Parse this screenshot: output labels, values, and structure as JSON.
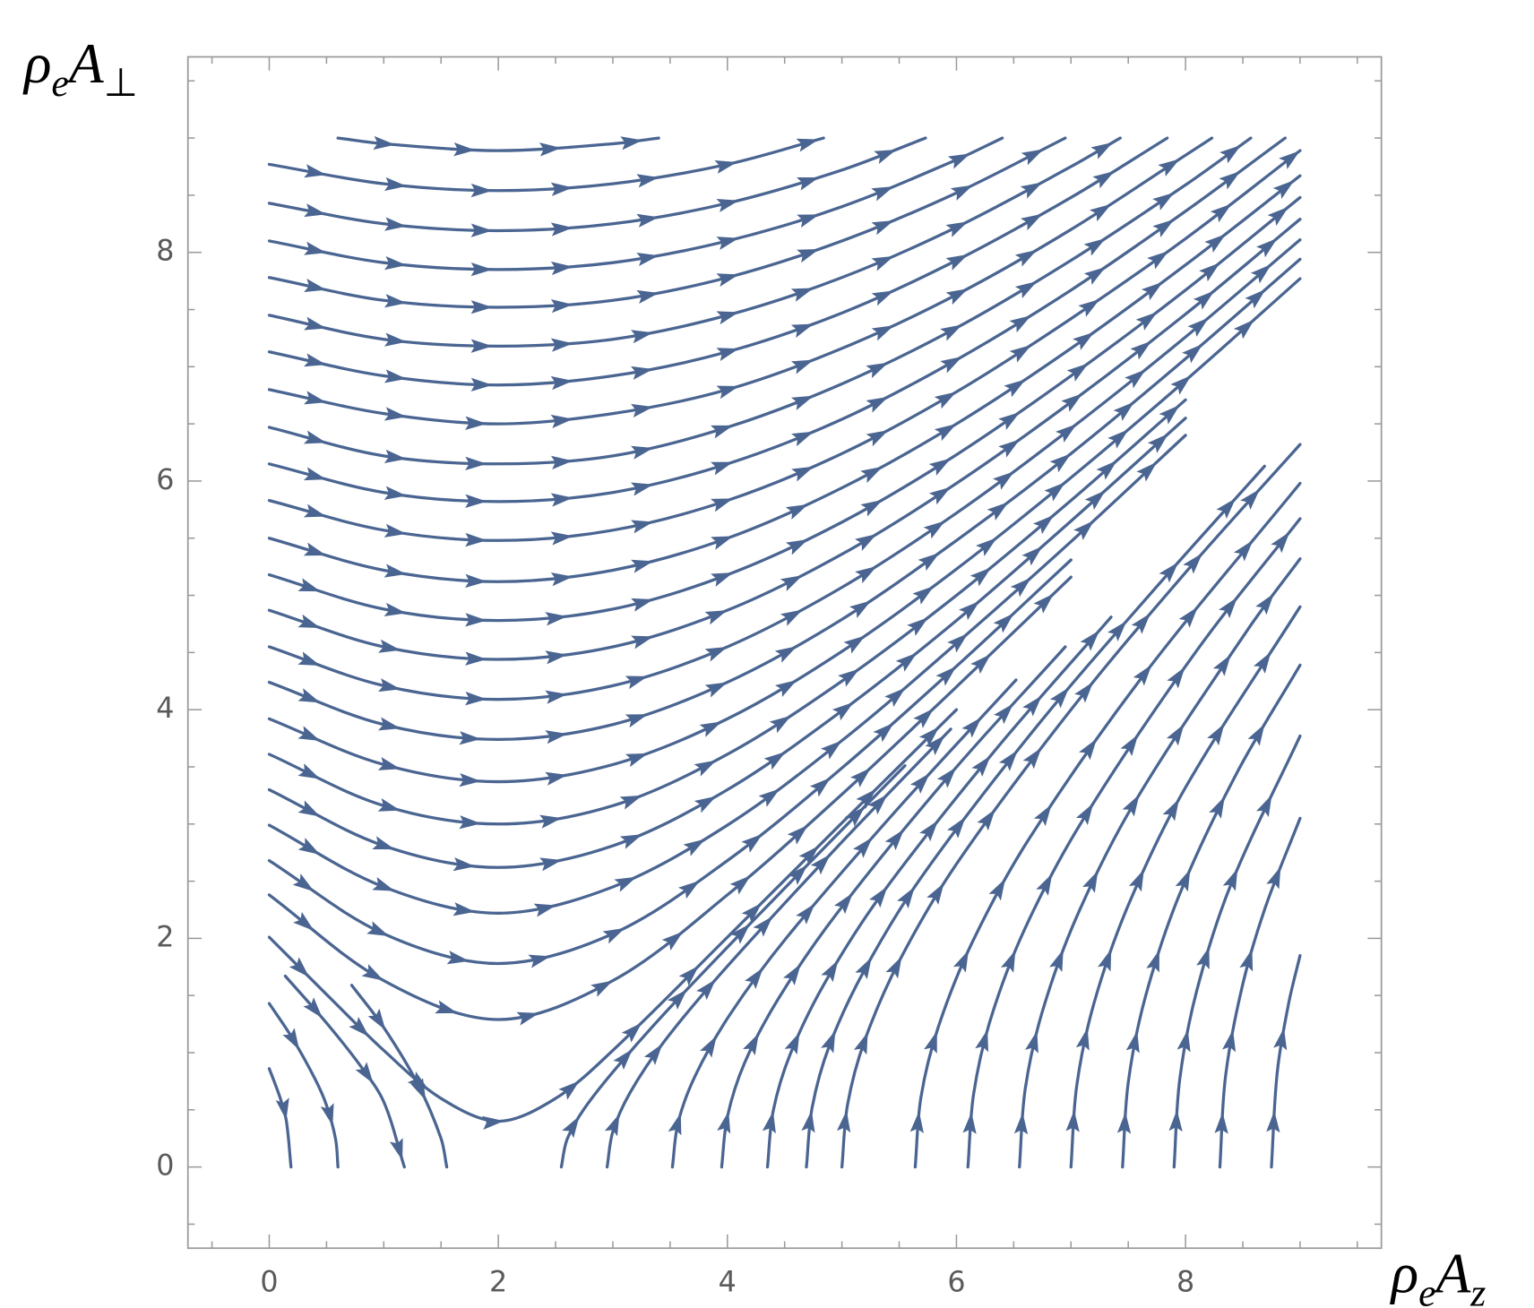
{
  "chart_data": {
    "type": "streamplot",
    "xlabel": [
      "ρ",
      "e",
      "A",
      "z"
    ],
    "ylabel": [
      "ρ",
      "e",
      "A",
      "⊥"
    ],
    "xlim": [
      -0.71,
      9.71
    ],
    "ylim": [
      -0.71,
      9.71
    ],
    "xticks": [
      0,
      2,
      4,
      6,
      8
    ],
    "yticks": [
      0,
      2,
      4,
      6,
      8
    ],
    "xminorticks": [
      -0.5,
      0.5,
      1,
      1.5,
      2.5,
      3,
      3.5,
      4.5,
      5,
      5.5,
      6.5,
      7,
      7.5,
      8.5,
      9,
      9.5
    ],
    "yminorticks": [
      -0.5,
      0.5,
      1,
      1.5,
      2.5,
      3,
      3.5,
      4.5,
      5,
      5.5,
      6.5,
      7,
      7.5,
      8.5,
      9,
      9.5
    ],
    "color": "#4a6591",
    "streamlines": [
      {
        "x": [
          0.6,
          1,
          2,
          3,
          3.4
        ],
        "y": [
          9,
          8.95,
          8.89,
          8.95,
          9
        ]
      },
      {
        "x": [
          0,
          1,
          2,
          3,
          4,
          4.84
        ],
        "y": [
          8.77,
          8.6,
          8.54,
          8.6,
          8.77,
          9
        ]
      },
      {
        "x": [
          0,
          1,
          2,
          3,
          4,
          5,
          5.73
        ],
        "y": [
          8.43,
          8.25,
          8.19,
          8.25,
          8.43,
          8.72,
          9
        ]
      },
      {
        "x": [
          0,
          1,
          2,
          3,
          4,
          5,
          6,
          6.4
        ],
        "y": [
          8.1,
          7.91,
          7.85,
          7.91,
          8.1,
          8.4,
          8.81,
          9
        ]
      },
      {
        "x": [
          0,
          1,
          2,
          3,
          4,
          5,
          6,
          6.95
        ],
        "y": [
          7.78,
          7.58,
          7.52,
          7.58,
          7.78,
          8.1,
          8.52,
          9
        ]
      },
      {
        "x": [
          0,
          1,
          2,
          3,
          4,
          5,
          6,
          7,
          7.43
        ],
        "y": [
          7.45,
          7.24,
          7.18,
          7.24,
          7.45,
          7.78,
          8.22,
          8.75,
          9
        ]
      },
      {
        "x": [
          0,
          1,
          2,
          3,
          4,
          5,
          6,
          7,
          7.84
        ],
        "y": [
          7.13,
          6.92,
          6.84,
          6.92,
          7.13,
          7.47,
          7.93,
          8.48,
          9
        ]
      },
      {
        "x": [
          0,
          1,
          2,
          3,
          4,
          5,
          6,
          7,
          8,
          8.23
        ],
        "y": [
          6.8,
          6.59,
          6.5,
          6.59,
          6.8,
          7.16,
          7.63,
          8.2,
          8.85,
          9
        ]
      },
      {
        "x": [
          0,
          1,
          2,
          3,
          4,
          5,
          6,
          7,
          8,
          8.57
        ],
        "y": [
          6.47,
          6.22,
          6.15,
          6.22,
          6.47,
          6.85,
          7.34,
          7.93,
          8.59,
          9
        ]
      },
      {
        "x": [
          0,
          1,
          2,
          3,
          4,
          5,
          6,
          7,
          8,
          8.87
        ],
        "y": [
          6.15,
          5.9,
          5.82,
          5.9,
          6.15,
          6.54,
          7.06,
          7.67,
          8.36,
          9
        ]
      },
      {
        "x": [
          0,
          1,
          2,
          3,
          4,
          5,
          6,
          7,
          8,
          9
        ],
        "y": [
          5.83,
          5.57,
          5.48,
          5.57,
          5.83,
          6.24,
          6.78,
          7.42,
          8.12,
          8.89
        ]
      },
      {
        "x": [
          0,
          1,
          2,
          3,
          4,
          5,
          6,
          7,
          8,
          9
        ],
        "y": [
          5.5,
          5.22,
          5.12,
          5.22,
          5.5,
          5.94,
          6.5,
          7.16,
          7.89,
          8.67
        ]
      },
      {
        "x": [
          0,
          1,
          2,
          3,
          4,
          5,
          6,
          7,
          8,
          9
        ],
        "y": [
          5.18,
          4.88,
          4.78,
          4.88,
          5.18,
          5.64,
          6.23,
          6.92,
          7.67,
          8.48
        ]
      },
      {
        "x": [
          0,
          1,
          2,
          3,
          4,
          5,
          6,
          7,
          8,
          9
        ],
        "y": [
          4.87,
          4.55,
          4.44,
          4.55,
          4.87,
          5.36,
          5.98,
          6.69,
          7.46,
          8.29
        ]
      },
      {
        "x": [
          0,
          1,
          2,
          3,
          4,
          5,
          6,
          7,
          8,
          9
        ],
        "y": [
          4.55,
          4.21,
          4.09,
          4.21,
          4.55,
          5.07,
          5.72,
          6.46,
          7.26,
          8.11
        ]
      },
      {
        "x": [
          0,
          1,
          2,
          3,
          4,
          5,
          6,
          7,
          8,
          9
        ],
        "y": [
          4.24,
          3.87,
          3.74,
          3.87,
          4.24,
          4.79,
          5.48,
          6.24,
          7.07,
          7.94
        ]
      },
      {
        "x": [
          0,
          1,
          2,
          3,
          4,
          5,
          6,
          7,
          8,
          9
        ],
        "y": [
          3.92,
          3.52,
          3.37,
          3.52,
          3.92,
          4.51,
          5.23,
          6.03,
          6.88,
          7.77
        ]
      },
      {
        "x": [
          0,
          1,
          2,
          3,
          4,
          5,
          6,
          7,
          8
        ],
        "y": [
          3.61,
          3.16,
          3,
          3.16,
          3.61,
          4.25,
          5,
          5.83,
          6.71
        ]
      },
      {
        "x": [
          0,
          1,
          2,
          3,
          4,
          5,
          6,
          7,
          8
        ],
        "y": [
          3.3,
          2.81,
          2.62,
          2.81,
          3.3,
          3.99,
          4.78,
          5.65,
          6.55
        ]
      },
      {
        "x": [
          0,
          1,
          2,
          3,
          4,
          5,
          6,
          7,
          8
        ],
        "y": [
          2.99,
          2.45,
          2.22,
          2.45,
          2.99,
          3.73,
          4.58,
          5.47,
          6.4
        ]
      },
      {
        "x": [
          0,
          1,
          2,
          3,
          4,
          5,
          6,
          7
        ],
        "y": [
          2.68,
          2.04,
          1.78,
          2.04,
          2.68,
          3.49,
          4.38,
          5.31
        ]
      },
      {
        "x": [
          0,
          1,
          2,
          3,
          4,
          5,
          6,
          7
        ],
        "y": [
          2.38,
          1.63,
          1.29,
          1.63,
          2.38,
          3.26,
          4.2,
          5.16
        ]
      },
      {
        "x": [
          0,
          0.5,
          1,
          1.5,
          2,
          2.5,
          3,
          4,
          5,
          6
        ],
        "y": [
          2.01,
          1.51,
          1.02,
          0.6,
          0.4,
          0.6,
          1.02,
          2.01,
          3.01,
          4
        ]
      },
      {
        "x": [
          0,
          0.2,
          0.4,
          0.5,
          0.58,
          0.6
        ],
        "y": [
          1.43,
          1.13,
          0.77,
          0.54,
          0.24,
          0
        ]
      },
      {
        "x": [
          0,
          0.05,
          0.1,
          0.15,
          0.19
        ],
        "y": [
          0.86,
          0.73,
          0.59,
          0.4,
          0
        ]
      },
      {
        "x": [
          0.14,
          0.5,
          0.8,
          1,
          1.18
        ],
        "y": [
          1.67,
          1.26,
          0.88,
          0.57,
          0
        ]
      },
      {
        "x": [
          0.72,
          1,
          1.3,
          1.5,
          1.55
        ],
        "y": [
          1.59,
          1.22,
          0.72,
          0.25,
          0
        ]
      },
      {
        "x": [
          2.55,
          2.6,
          2.75,
          3.05,
          3.55,
          4.55,
          5.55
        ],
        "y": [
          0,
          0.24,
          0.51,
          0.89,
          1.45,
          2.49,
          3.51
        ]
      },
      {
        "x": [
          2.95,
          3,
          3.15,
          3.45,
          3.95,
          4.95,
          5.95
        ],
        "y": [
          0,
          0.31,
          0.65,
          1.1,
          1.7,
          2.79,
          3.83
        ]
      },
      {
        "x": [
          3.52,
          3.57,
          3.72,
          4.02,
          4.52,
          5.52,
          6.52
        ],
        "y": [
          0,
          0.39,
          0.8,
          1.33,
          2.01,
          3.17,
          4.26
        ]
      },
      {
        "x": [
          3.95,
          4,
          4.15,
          4.45,
          4.95,
          5.95,
          6.95
        ],
        "y": [
          0,
          0.44,
          0.91,
          1.48,
          2.21,
          3.44,
          4.55
        ]
      },
      {
        "x": [
          4.35,
          4.4,
          4.55,
          4.85,
          5.35,
          6.35,
          7.35
        ],
        "y": [
          0,
          0.49,
          0.99,
          1.61,
          2.39,
          3.66,
          4.81
        ]
      },
      {
        "x": [
          4.69,
          4.74,
          4.89,
          5.19,
          5.69,
          6.69,
          7.69,
          8.69
        ],
        "y": [
          0,
          0.52,
          1.06,
          1.71,
          2.53,
          3.84,
          5.01,
          6.13
        ]
      },
      {
        "x": [
          5,
          5.05,
          5.2,
          5.5,
          6,
          7,
          8,
          9
        ],
        "y": [
          0,
          0.55,
          1.11,
          1.8,
          2.65,
          4,
          5.2,
          6.32
        ]
      },
      {
        "x": [
          5.64,
          5.69,
          5.84,
          6.14,
          6.64,
          7.64,
          9
        ],
        "y": [
          0,
          0.61,
          1.22,
          1.97,
          2.88,
          4.31,
          5.98
        ]
      },
      {
        "x": [
          6.1,
          6.15,
          6.3,
          6.6,
          7.1,
          8.1,
          9
        ],
        "y": [
          0,
          0.64,
          1.3,
          2.09,
          3.03,
          4.52,
          5.67
        ]
      },
      {
        "x": [
          6.55,
          6.6,
          6.75,
          7.05,
          7.55,
          8.55,
          9
        ],
        "y": [
          0,
          0.68,
          1.36,
          2.19,
          3.18,
          4.71,
          5.32
        ]
      },
      {
        "x": [
          7,
          7.05,
          7.2,
          7.5,
          8,
          9
        ],
        "y": [
          0,
          0.71,
          1.43,
          2.29,
          3.32,
          4.9
        ]
      },
      {
        "x": [
          7.45,
          7.5,
          7.65,
          7.95,
          8.45,
          9
        ],
        "y": [
          0,
          0.74,
          1.49,
          2.39,
          3.45,
          4.39
        ]
      },
      {
        "x": [
          7.9,
          7.95,
          8.1,
          8.4,
          9
        ],
        "y": [
          0,
          0.77,
          1.55,
          2.48,
          3.77
        ]
      },
      {
        "x": [
          8.3,
          8.35,
          8.5,
          8.7,
          9
        ],
        "y": [
          0,
          0.8,
          1.6,
          2.28,
          3.05
        ]
      },
      {
        "x": [
          8.75,
          8.8,
          8.9,
          9
        ],
        "y": [
          0,
          0.82,
          1.43,
          1.85
        ]
      }
    ]
  }
}
